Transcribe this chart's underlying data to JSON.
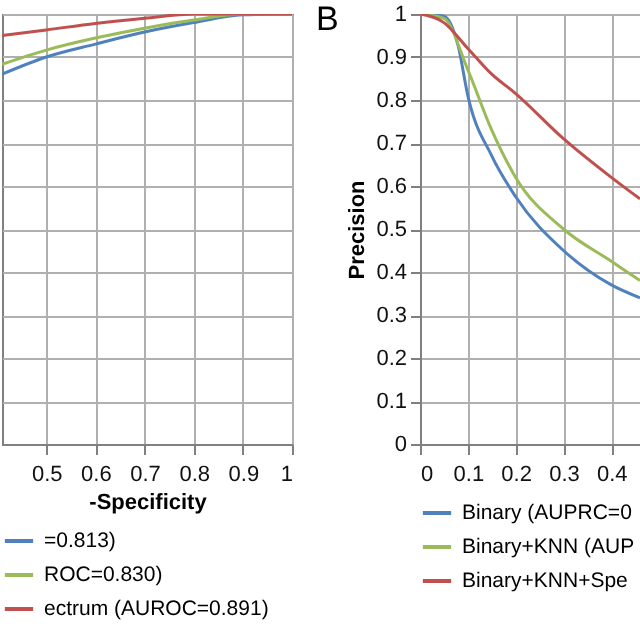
{
  "chart_data": [
    {
      "type": "line",
      "xlabel": "-Specificity",
      "xlim": [
        0.41,
        1
      ],
      "xticks": [
        0.5,
        0.6,
        0.7,
        0.8,
        0.9,
        1
      ],
      "ylim": [
        0,
        1
      ],
      "yticks": [
        {
          "value": 0,
          "label": null
        },
        {
          "value": 0.1,
          "label": null
        },
        {
          "value": 0.2,
          "label": null
        },
        {
          "value": 0.3,
          "label": null
        },
        {
          "value": 0.4,
          "label": null
        },
        {
          "value": 0.5,
          "label": null
        },
        {
          "value": 0.6,
          "label": null
        },
        {
          "value": 0.7,
          "label": null
        },
        {
          "value": 0.8,
          "label": null
        },
        {
          "value": 0.9,
          "label": null
        },
        {
          "value": 1,
          "label": null
        }
      ],
      "tick_labels": "x",
      "grid": true,
      "legend": "bottom",
      "marker": "none",
      "line_style": "solid",
      "series": [
        {
          "name": "=0.813)",
          "color": "#4f81bd",
          "x": [
            0.41,
            0.5,
            0.6,
            0.7,
            0.8,
            0.9,
            1
          ],
          "values": [
            0.86,
            0.9,
            0.93,
            0.958,
            0.98,
            0.998,
            1
          ]
        },
        {
          "name": "ROC=0.830)",
          "color": "#9bbb59",
          "x": [
            0.41,
            0.5,
            0.6,
            0.7,
            0.8,
            0.9,
            1
          ],
          "values": [
            0.883,
            0.916,
            0.944,
            0.967,
            0.986,
            1,
            1
          ]
        },
        {
          "name": "ectrum (AUROC=0.891)",
          "color": "#c0504d",
          "x": [
            0.41,
            0.5,
            0.6,
            0.7,
            0.8,
            0.9,
            1
          ],
          "values": [
            0.95,
            0.963,
            0.978,
            0.99,
            1,
            1,
            1
          ]
        }
      ]
    },
    {
      "type": "line",
      "title": "B",
      "ylabel": "Precision",
      "xlim": [
        0,
        0.46
      ],
      "xticks": [
        0,
        0.1,
        0.2,
        0.3,
        0.4
      ],
      "ylim": [
        0,
        1
      ],
      "yticks": [
        0,
        0.1,
        0.2,
        0.3,
        0.4,
        0.5,
        0.6,
        0.7,
        0.8,
        0.9,
        1
      ],
      "grid": true,
      "legend": "bottom",
      "marker": "none",
      "line_style": "solid",
      "series": [
        {
          "name": "Binary (AUPRC=0",
          "color": "#4f81bd",
          "x": [
            0,
            0.05,
            0.08,
            0.1,
            0.15,
            0.2,
            0.3,
            0.4,
            0.46
          ],
          "values": [
            1,
            0.995,
            0.925,
            0.81,
            0.67,
            0.575,
            0.45,
            0.37,
            0.34
          ]
        },
        {
          "name": "Binary+KNN (AUP",
          "color": "#9bbb59",
          "x": [
            0,
            0.05,
            0.1,
            0.15,
            0.2,
            0.3,
            0.4,
            0.46
          ],
          "values": [
            1,
            0.99,
            0.87,
            0.73,
            0.62,
            0.5,
            0.425,
            0.38
          ]
        },
        {
          "name": "Binary+KNN+Spe",
          "color": "#c0504d",
          "x": [
            0,
            0.05,
            0.1,
            0.15,
            0.2,
            0.3,
            0.4,
            0.46
          ],
          "values": [
            1,
            0.98,
            0.92,
            0.86,
            0.815,
            0.71,
            0.62,
            0.57
          ]
        }
      ]
    }
  ]
}
